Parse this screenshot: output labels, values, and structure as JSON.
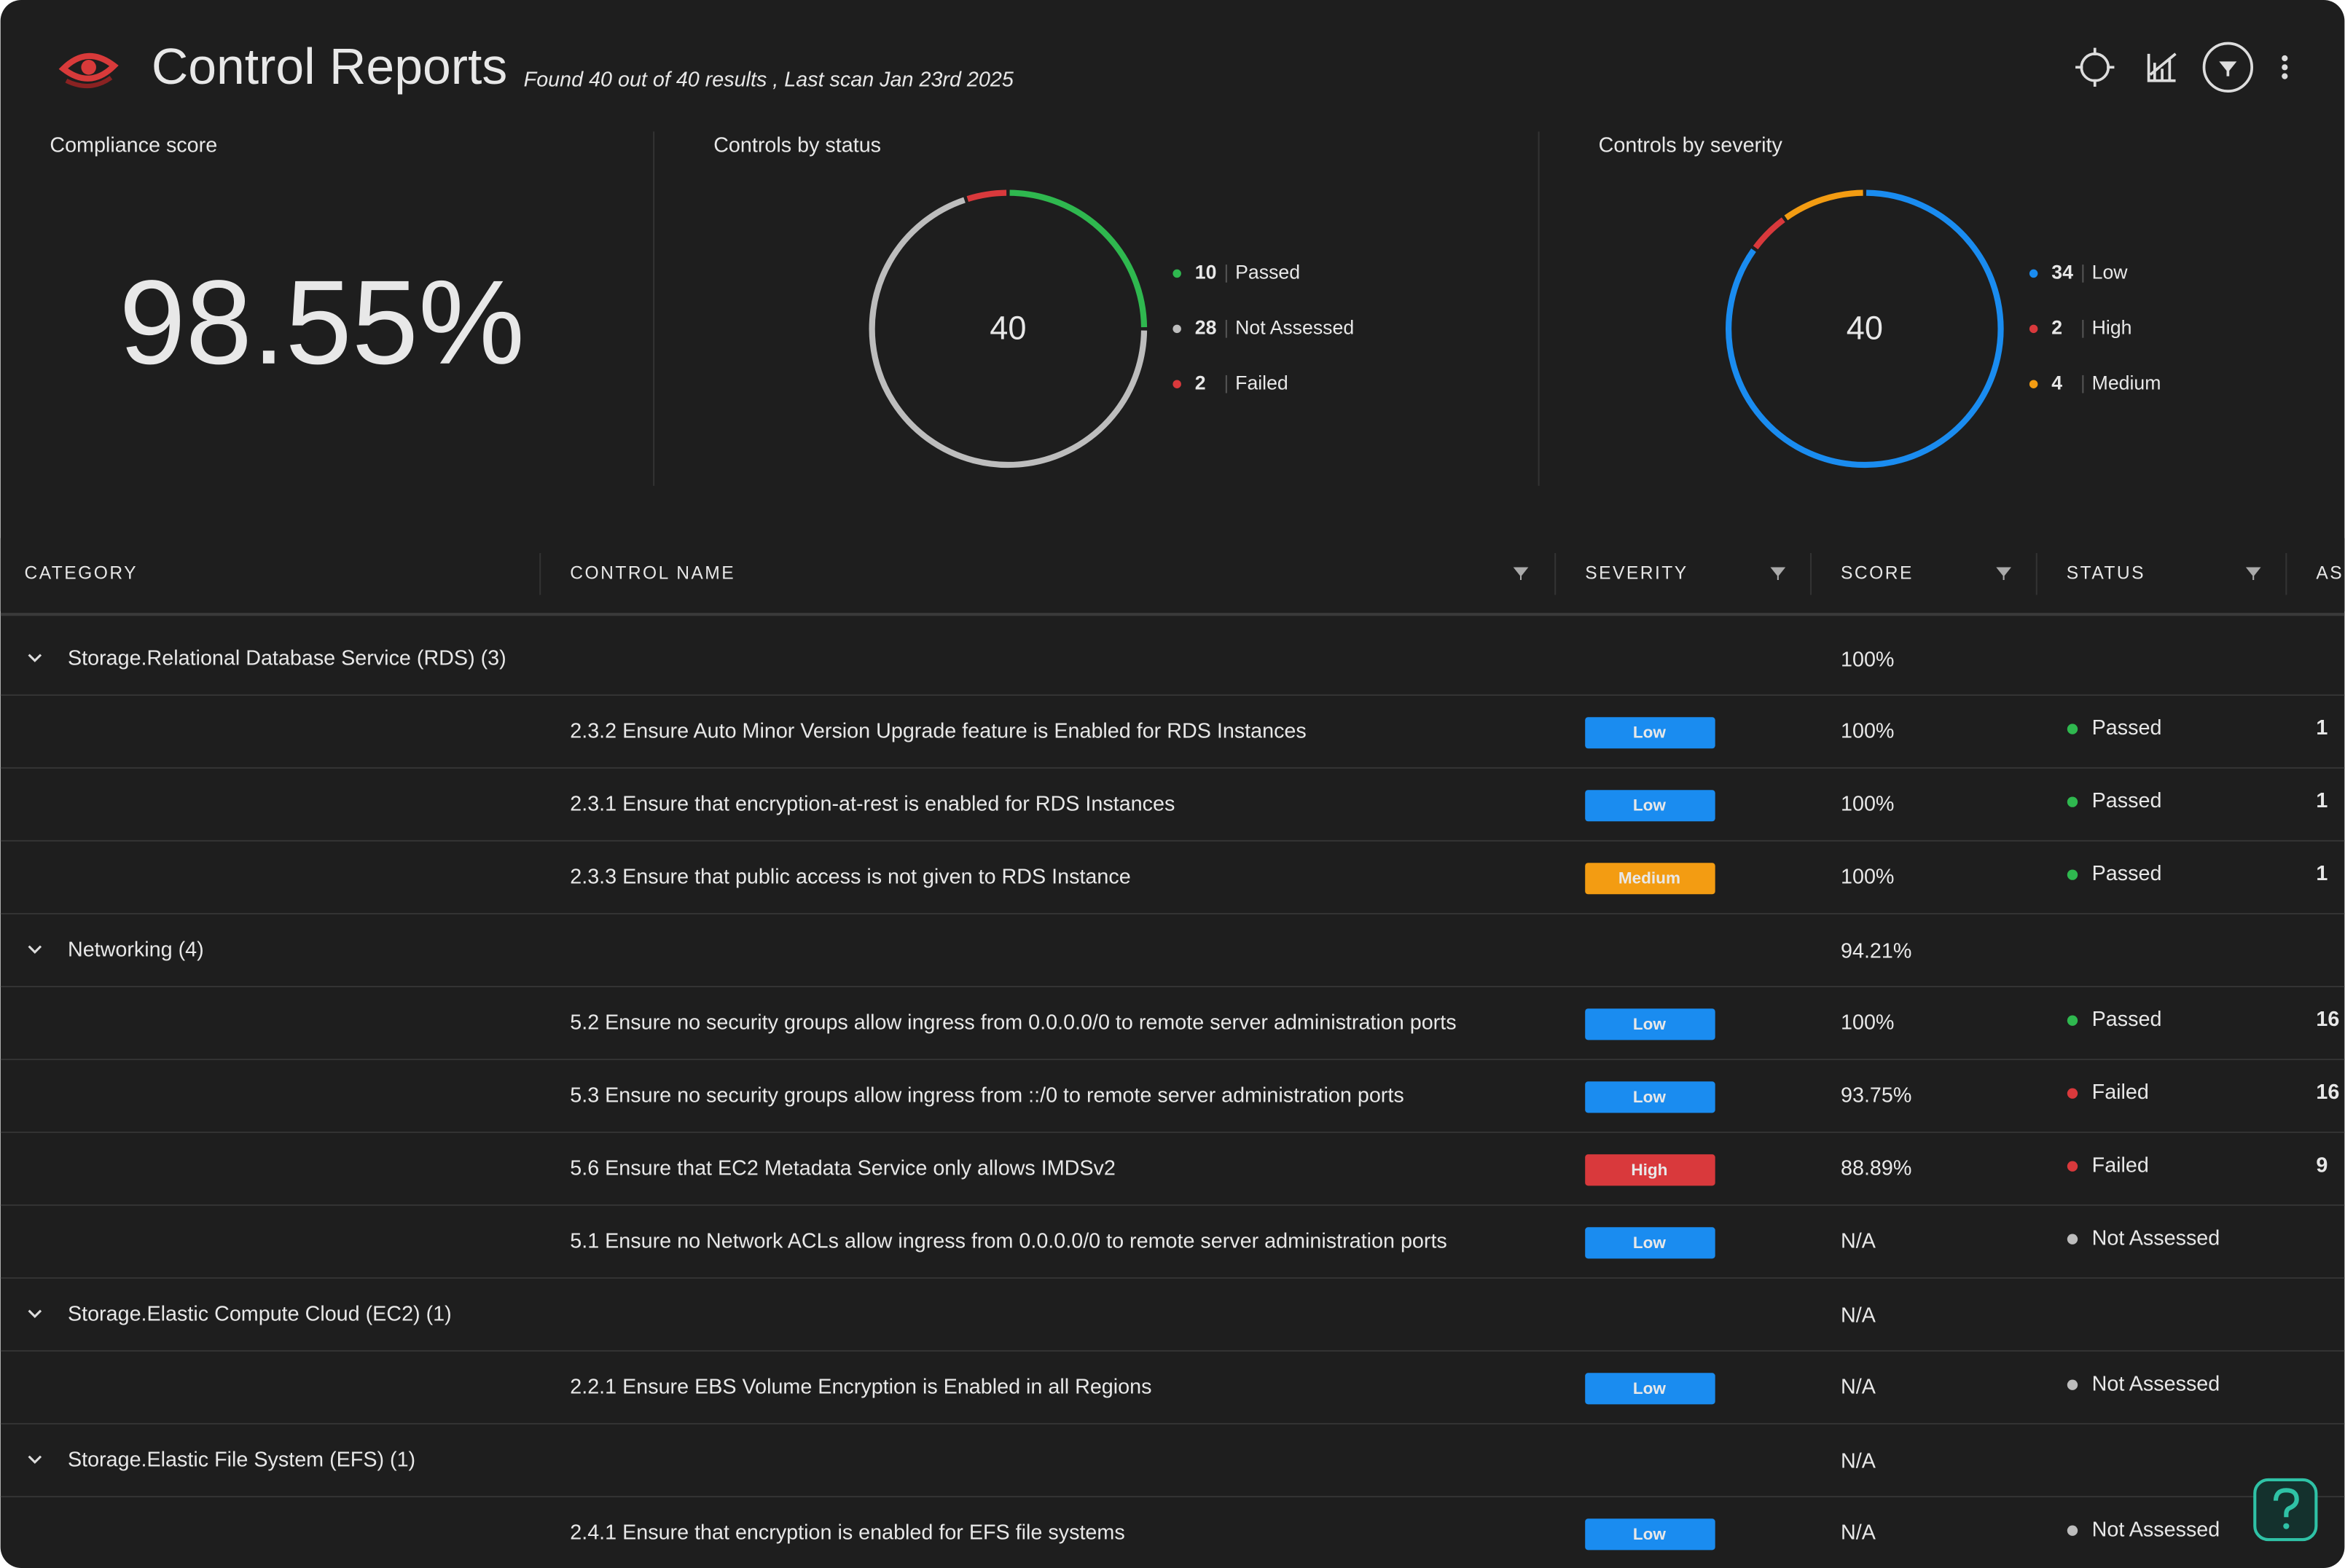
{
  "header": {
    "title": "Control Reports",
    "subtitle": "Found 40 out of 40 results , Last scan Jan 23rd 2025"
  },
  "compliance": {
    "label": "Compliance score",
    "value": "98.55%"
  },
  "status_chart": {
    "title": "Controls by status",
    "total": 40,
    "segments": [
      {
        "name": "Passed",
        "value": 10,
        "color": "#2fb84f"
      },
      {
        "name": "Not Assessed",
        "value": 28,
        "color": "#bdbdbd"
      },
      {
        "name": "Failed",
        "value": 2,
        "color": "#d9393c"
      }
    ]
  },
  "severity_chart": {
    "title": "Controls by severity",
    "total": 40,
    "segments": [
      {
        "name": "Low",
        "value": 34,
        "color": "#1a8cf0"
      },
      {
        "name": "High",
        "value": 2,
        "color": "#d9393c"
      },
      {
        "name": "Medium",
        "value": 4,
        "color": "#f39c12"
      }
    ]
  },
  "table": {
    "columns": [
      "CATEGORY",
      "CONTROL NAME",
      "SEVERITY",
      "SCORE",
      "STATUS",
      "AS"
    ],
    "groups": [
      {
        "name": "Storage.Relational Database Service (RDS) (3)",
        "score": "100%",
        "rows": [
          {
            "name": "2.3.2 Ensure Auto Minor Version Upgrade feature is Enabled for RDS Instances",
            "severity": "Low",
            "score": "100%",
            "status": "Passed",
            "count": 1
          },
          {
            "name": "2.3.1 Ensure that encryption-at-rest is enabled for RDS Instances",
            "severity": "Low",
            "score": "100%",
            "status": "Passed",
            "count": 1
          },
          {
            "name": "2.3.3 Ensure that public access is not given to RDS Instance",
            "severity": "Medium",
            "score": "100%",
            "status": "Passed",
            "count": 1
          }
        ]
      },
      {
        "name": "Networking (4)",
        "score": "94.21%",
        "rows": [
          {
            "name": "5.2 Ensure no security groups allow ingress from 0.0.0.0/0 to remote server administration ports",
            "severity": "Low",
            "score": "100%",
            "status": "Passed",
            "count": 16
          },
          {
            "name": "5.3 Ensure no security groups allow ingress from ::/0 to remote server administration ports",
            "severity": "Low",
            "score": "93.75%",
            "status": "Failed",
            "count": 16
          },
          {
            "name": "5.6 Ensure that EC2 Metadata Service only allows IMDSv2",
            "severity": "High",
            "score": "88.89%",
            "status": "Failed",
            "count": 9
          },
          {
            "name": "5.1 Ensure no Network ACLs allow ingress from 0.0.0.0/0 to remote server administration ports",
            "severity": "Low",
            "score": "N/A",
            "status": "Not Assessed"
          }
        ]
      },
      {
        "name": "Storage.Elastic Compute Cloud (EC2) (1)",
        "score": "N/A",
        "rows": [
          {
            "name": "2.2.1 Ensure EBS Volume Encryption is Enabled in all Regions",
            "severity": "Low",
            "score": "N/A",
            "status": "Not Assessed"
          }
        ]
      },
      {
        "name": "Storage.Elastic File System (EFS) (1)",
        "score": "N/A",
        "rows": [
          {
            "name": "2.4.1 Ensure that encryption is enabled for EFS file systems",
            "severity": "Low",
            "score": "N/A",
            "status": "Not Assessed"
          }
        ]
      }
    ]
  }
}
